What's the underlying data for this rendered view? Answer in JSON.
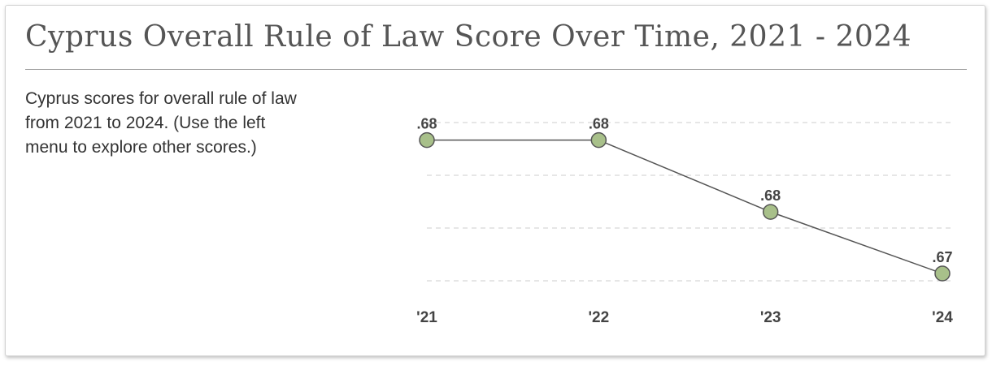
{
  "header": {
    "title": "Cyprus Overall Rule of Law Score Over Time, 2021 - 2024"
  },
  "description": "Cyprus scores for overall rule of law from 2021 to 2024. (Use the left menu to explore other scores.)",
  "chart_data": {
    "type": "line",
    "title": "",
    "xlabel": "",
    "ylabel": "",
    "categories": [
      "'21",
      "'22",
      "'23",
      "'24"
    ],
    "series": [
      {
        "values": [
          0.682,
          0.682,
          0.675,
          0.669
        ],
        "labels": [
          ".68",
          ".68",
          ".68",
          ".67"
        ]
      }
    ],
    "ylim": [
      0.669,
      0.683
    ],
    "grid": true,
    "legend": "none",
    "colors": {
      "line": "#555555",
      "marker_fill": "#a8c08a",
      "marker_stroke": "#555555",
      "grid": "#cccccc"
    }
  }
}
